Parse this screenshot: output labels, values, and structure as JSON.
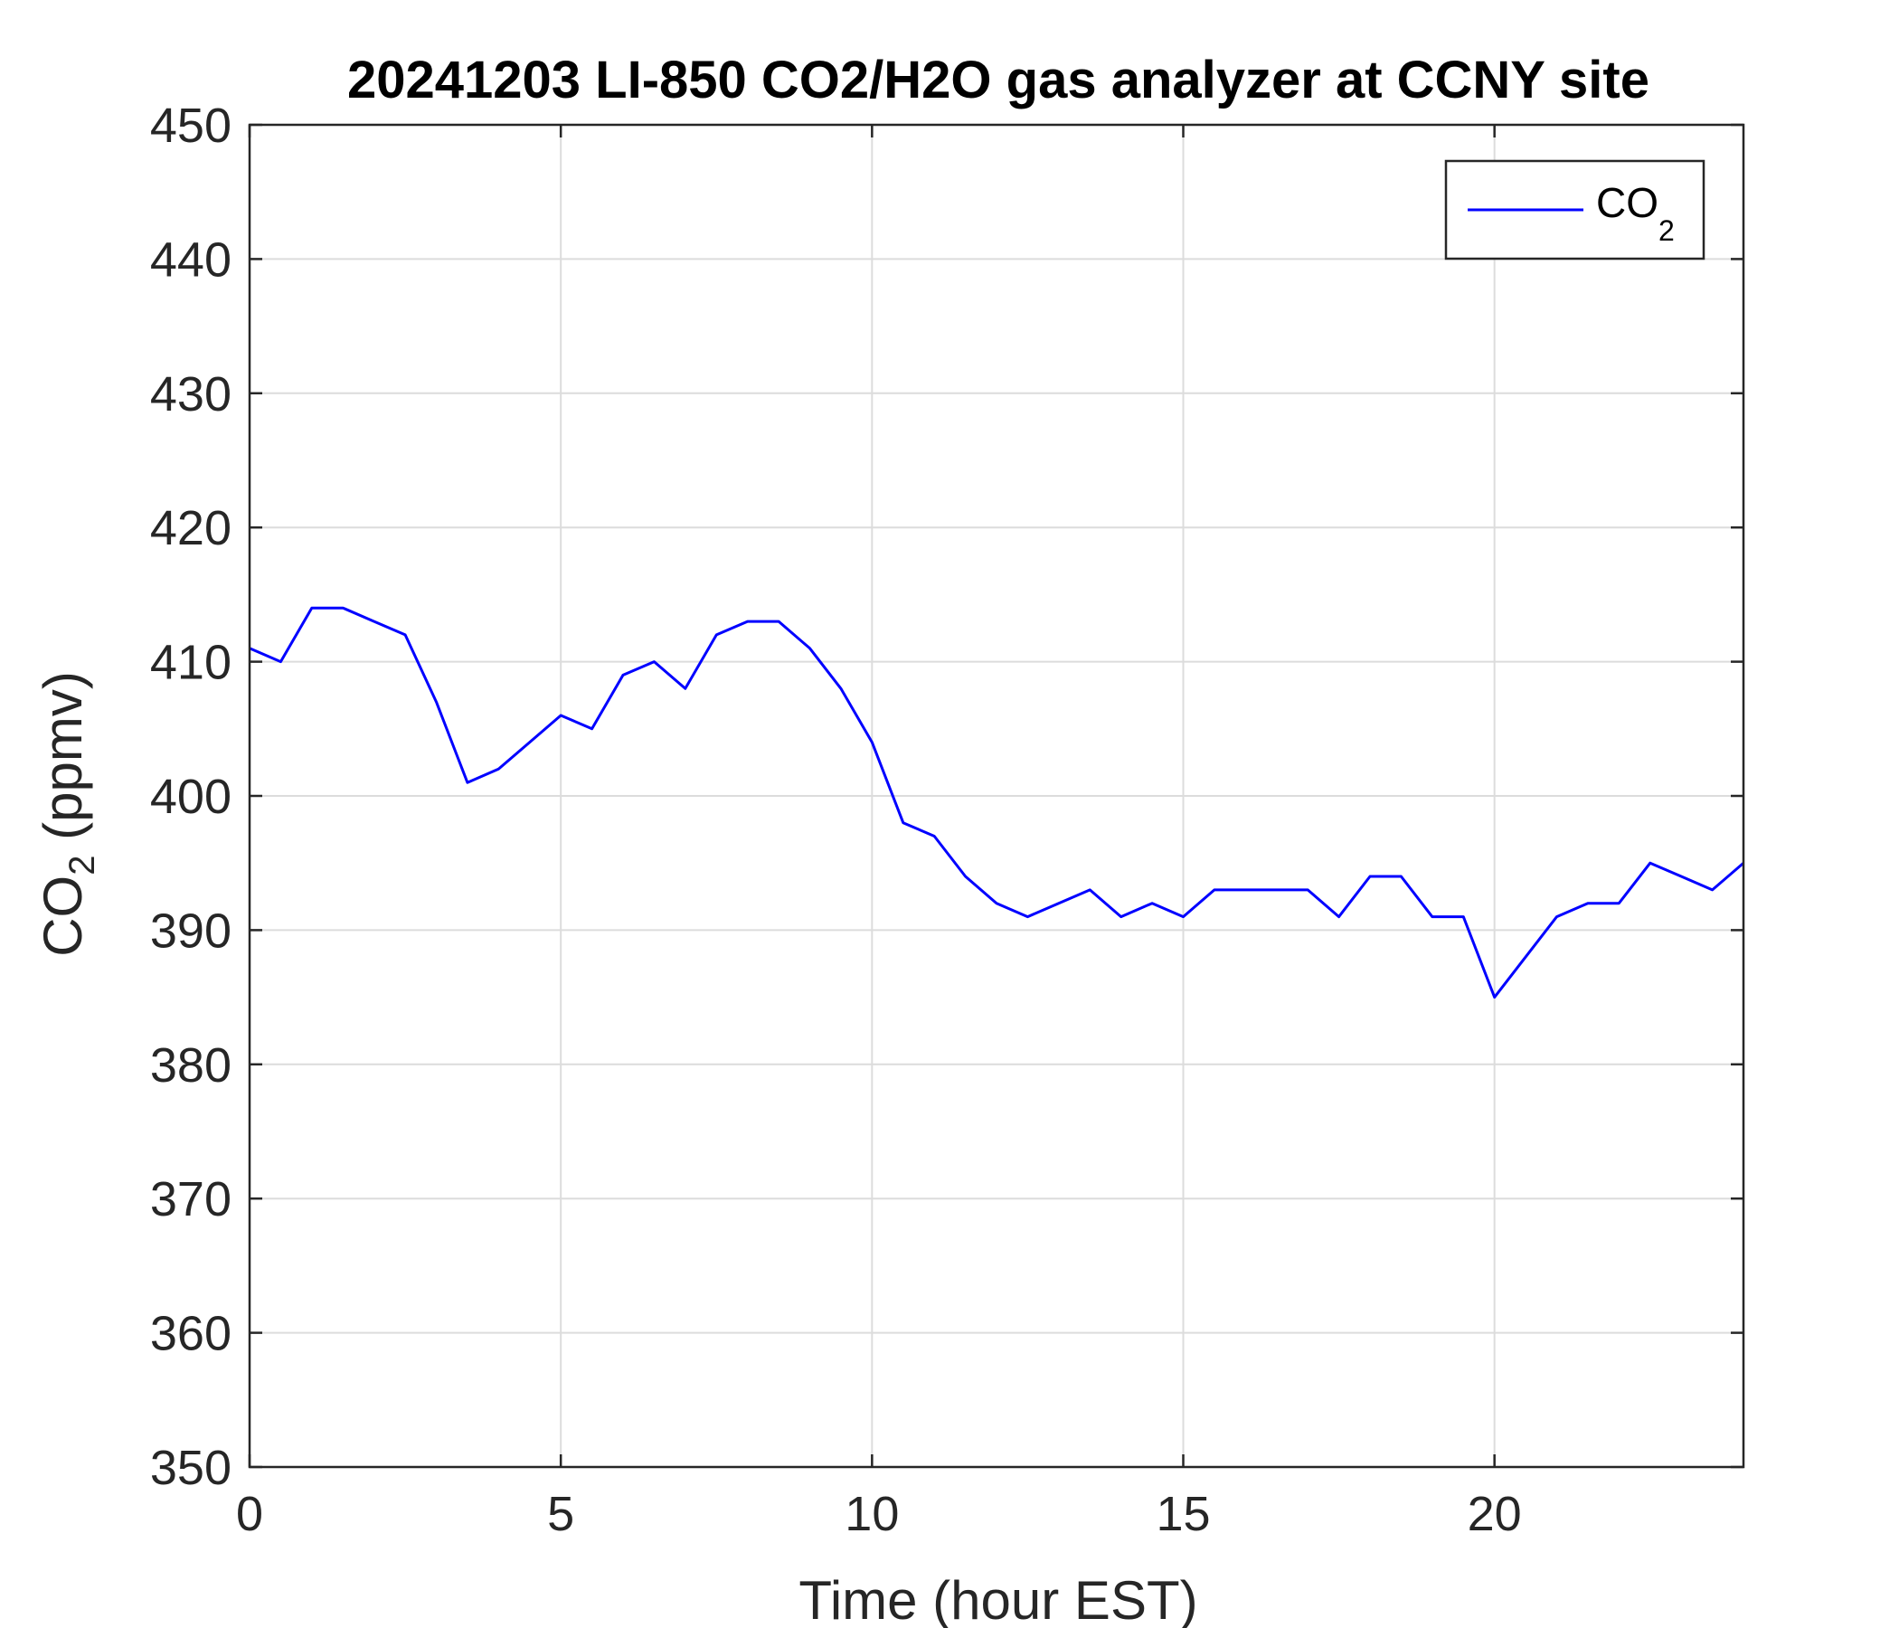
{
  "chart_data": {
    "type": "line",
    "title": "20241203 LI-850 CO2/H2O gas analyzer at CCNY site",
    "xlabel": "Time (hour EST)",
    "ylabel": "CO₂ (ppmv)",
    "ylabel_main": "CO",
    "ylabel_sub": "2",
    "ylabel_unit": " (ppmv)",
    "xlim": [
      0,
      24
    ],
    "ylim": [
      350,
      450
    ],
    "xticks": [
      0,
      5,
      10,
      15,
      20
    ],
    "yticks": [
      350,
      360,
      370,
      380,
      390,
      400,
      410,
      420,
      430,
      440,
      450
    ],
    "grid": true,
    "legend": {
      "position": "top-right",
      "label_main": "CO",
      "label_sub": "2"
    },
    "line_color": "#0000ff",
    "series": [
      {
        "name": "CO₂",
        "x": [
          0,
          0.5,
          1,
          1.5,
          2,
          2.5,
          3,
          3.5,
          4,
          4.5,
          5,
          5.5,
          6,
          6.5,
          7,
          7.5,
          8,
          8.5,
          9,
          9.5,
          10,
          10.5,
          11,
          11.5,
          12,
          12.5,
          13,
          13.5,
          14,
          14.5,
          15,
          15.5,
          16,
          16.5,
          17,
          17.5,
          18,
          18.5,
          19,
          19.5,
          20,
          20.5,
          21,
          21.5,
          22,
          22.5,
          23,
          23.5,
          24
        ],
        "y": [
          411,
          410,
          414,
          414,
          413,
          412,
          407,
          401,
          402,
          404,
          406,
          405,
          409,
          410,
          408,
          412,
          413,
          413,
          411,
          408,
          404,
          398,
          397,
          394,
          392,
          391,
          392,
          393,
          391,
          392,
          391,
          393,
          393,
          393,
          393,
          391,
          394,
          394,
          391,
          391,
          385,
          388,
          391,
          392,
          392,
          395,
          394,
          393,
          395
        ]
      }
    ]
  }
}
